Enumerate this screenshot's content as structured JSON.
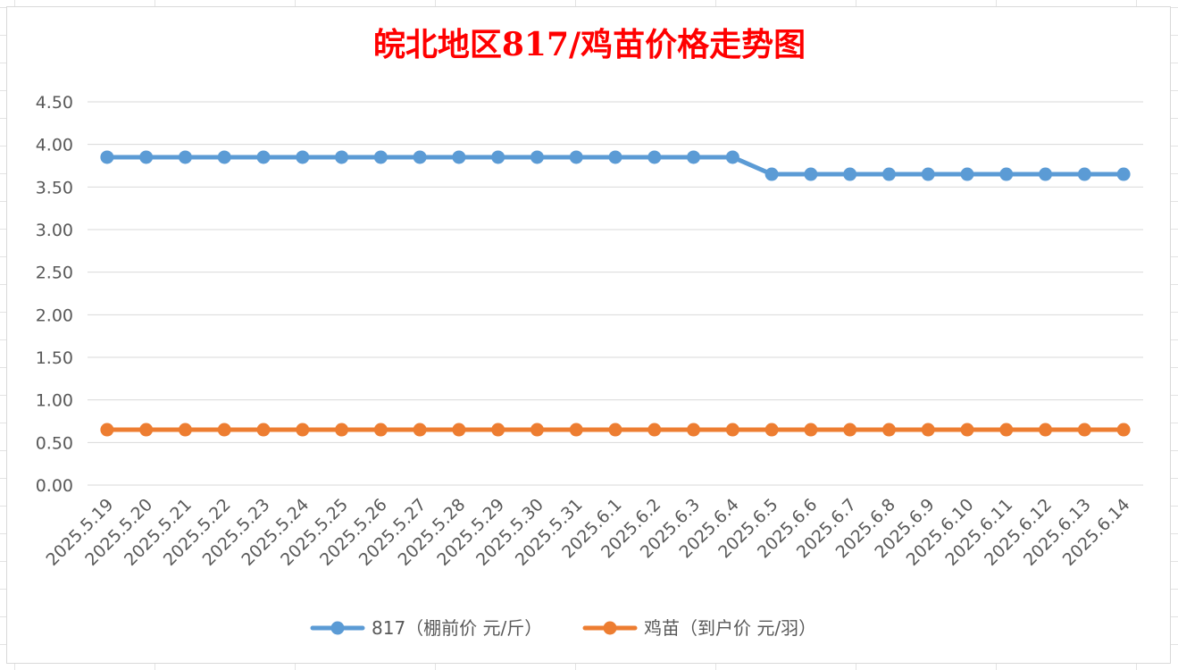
{
  "chart_data": {
    "type": "line",
    "title": "皖北地区817/鸡苗价格走势图",
    "xlabel": "",
    "ylabel": "",
    "ylim": [
      0,
      4.5
    ],
    "yticks": [
      "0.00",
      "0.50",
      "1.00",
      "1.50",
      "2.00",
      "2.50",
      "3.00",
      "3.50",
      "4.00",
      "4.50"
    ],
    "grid": true,
    "legend_position": "bottom",
    "categories": [
      "2025.5.19",
      "2025.5.20",
      "2025.5.21",
      "2025.5.22",
      "2025.5.23",
      "2025.5.24",
      "2025.5.25",
      "2025.5.26",
      "2025.5.27",
      "2025.5.28",
      "2025.5.29",
      "2025.5.30",
      "2025.5.31",
      "2025.6.1",
      "2025.6.2",
      "2025.6.3",
      "2025.6.4",
      "2025.6.5",
      "2025.6.6",
      "2025.6.7",
      "2025.6.8",
      "2025.6.9",
      "2025.6.10",
      "2025.6.11",
      "2025.6.12",
      "2025.6.13",
      "2025.6.14"
    ],
    "series": [
      {
        "name": "817（棚前价 元/斤）",
        "color": "#5b9bd5",
        "values": [
          3.85,
          3.85,
          3.85,
          3.85,
          3.85,
          3.85,
          3.85,
          3.85,
          3.85,
          3.85,
          3.85,
          3.85,
          3.85,
          3.85,
          3.85,
          3.85,
          3.85,
          3.65,
          3.65,
          3.65,
          3.65,
          3.65,
          3.65,
          3.65,
          3.65,
          3.65,
          3.65
        ]
      },
      {
        "name": "鸡苗（到户价 元/羽）",
        "color": "#ed7d31",
        "values": [
          0.65,
          0.65,
          0.65,
          0.65,
          0.65,
          0.65,
          0.65,
          0.65,
          0.65,
          0.65,
          0.65,
          0.65,
          0.65,
          0.65,
          0.65,
          0.65,
          0.65,
          0.65,
          0.65,
          0.65,
          0.65,
          0.65,
          0.65,
          0.65,
          0.65,
          0.65,
          0.65
        ]
      }
    ],
    "colors": {
      "title": "#ff0000",
      "grid": "#d9d9d9",
      "tick_label": "#595959"
    }
  }
}
